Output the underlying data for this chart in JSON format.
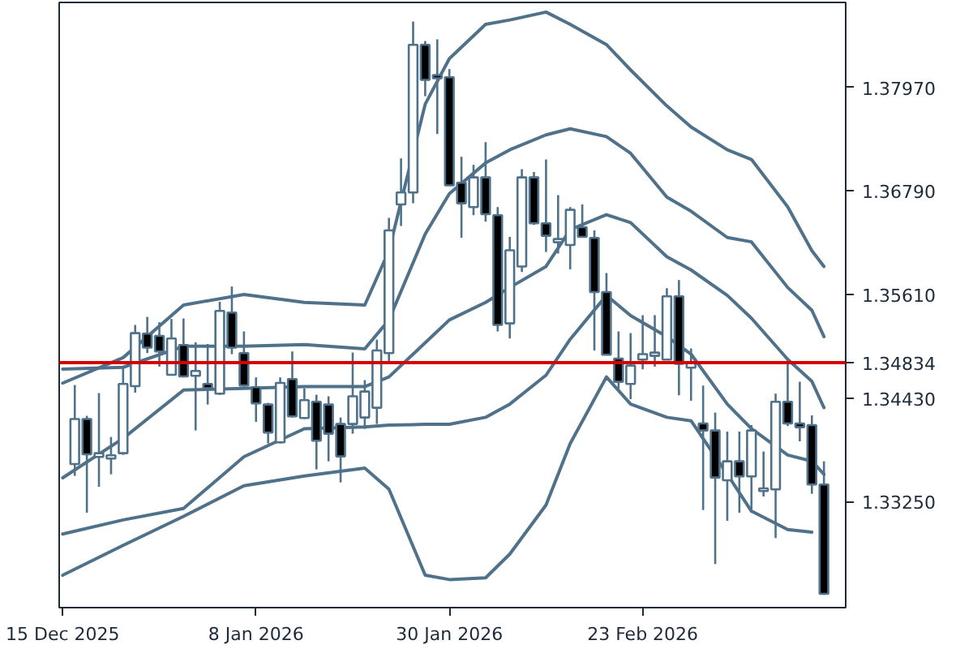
{
  "chart_data": {
    "type": "candlestick",
    "categories": [
      "15 Dec 2025",
      null,
      null,
      null,
      null,
      null,
      null,
      null,
      null,
      null,
      null,
      null,
      null,
      null,
      null,
      null,
      "8 Jan 2026",
      null,
      null,
      null,
      null,
      null,
      null,
      null,
      null,
      null,
      null,
      null,
      null,
      null,
      null,
      null,
      "30 Jan 2026",
      null,
      null,
      null,
      null,
      null,
      null,
      null,
      null,
      null,
      null,
      null,
      null,
      null,
      null,
      null,
      "23 Feb 2026",
      null,
      null,
      null,
      null,
      null,
      null,
      null,
      null,
      null,
      null,
      null,
      null,
      null,
      null,
      null
    ],
    "color": "#4f7189",
    "colors": [
      null,
      "#ffffff",
      "#000000",
      "#ffffff",
      "#ffffff",
      "#ffffff",
      "#ffffff",
      "#000000",
      "#000000",
      "#ffffff",
      "#000000",
      "#ffffff",
      "#000000",
      "#ffffff",
      "#000000",
      "#000000",
      "#000000",
      "#000000",
      "#ffffff",
      "#000000",
      "#ffffff",
      "#000000",
      "#000000",
      "#000000",
      "#ffffff",
      "#ffffff",
      "#ffffff",
      "#ffffff",
      "#ffffff",
      "#ffffff",
      "#000000",
      "#000000",
      "#000000",
      "#000000",
      "#ffffff",
      "#000000",
      "#000000",
      "#ffffff",
      "#ffffff",
      "#000000",
      "#000000",
      "#ffffff",
      "#ffffff",
      "#000000",
      "#000000",
      "#000000",
      "#000000",
      "#ffffff",
      "#ffffff",
      "#ffffff",
      "#ffffff",
      "#000000",
      "#ffffff",
      "#000000",
      "#000000",
      "#ffffff",
      "#000000",
      "#ffffff",
      "#ffffff",
      "#ffffff",
      "#000000",
      "#000000",
      "#000000",
      "#000000"
    ],
    "ohlc": [
      null,
      [
        1.33677,
        1.34578,
        1.33542,
        1.3419
      ],
      [
        1.3419,
        1.34227,
        1.33122,
        1.33788
      ],
      [
        1.33758,
        1.34486,
        1.33418,
        1.33801
      ],
      [
        1.3374,
        1.33986,
        1.3356,
        1.33777
      ],
      [
        1.33801,
        1.34782,
        1.33782,
        1.34591
      ],
      [
        1.34565,
        1.35263,
        1.34491,
        1.3517
      ],
      [
        1.35164,
        1.35355,
        1.34942,
        1.35004
      ],
      [
        1.35139,
        1.35294,
        1.34787,
        1.34961
      ],
      [
        1.34695,
        1.35331,
        1.34689,
        1.35109
      ],
      [
        1.35035,
        1.35337,
        1.34665,
        1.34676
      ],
      [
        1.34683,
        1.35065,
        1.3406,
        1.34739
      ],
      [
        1.34591,
        1.35046,
        1.34356,
        1.34541
      ],
      [
        1.3448,
        1.35527,
        1.34467,
        1.35423
      ],
      [
        1.35405,
        1.35701,
        1.3493,
        1.35004
      ],
      [
        1.34942,
        1.35189,
        1.3456,
        1.34572
      ],
      [
        1.34554,
        1.34665,
        1.34158,
        1.34369
      ],
      [
        1.34356,
        1.34375,
        1.33912,
        1.34036
      ],
      [
        1.33925,
        1.34665,
        1.33912,
        1.34602
      ],
      [
        1.34646,
        1.34961,
        1.34208,
        1.34221
      ],
      [
        1.34202,
        1.34541,
        1.3419,
        1.34406
      ],
      [
        1.34387,
        1.34467,
        1.33616,
        1.33943
      ],
      [
        1.34356,
        1.34449,
        1.33708,
        1.34023
      ],
      [
        1.34134,
        1.34208,
        1.33468,
        1.33764
      ],
      [
        1.34134,
        1.34948,
        1.34023,
        1.34449
      ],
      [
        1.34208,
        1.34634,
        1.34078,
        1.34504
      ],
      [
        1.34319,
        1.35096,
        1.34134,
        1.34972
      ],
      [
        1.34942,
        1.36484,
        1.3485,
        1.36341
      ],
      [
        1.36637,
        1.37162,
        1.36391,
        1.36774
      ],
      [
        1.36774,
        1.38722,
        1.3665,
        1.38457
      ],
      [
        1.38457,
        1.385,
        1.37871,
        1.38056
      ],
      [
        1.38112,
        1.38519,
        1.3744,
        1.38075
      ],
      [
        1.38087,
        1.3818,
        1.36854,
        1.36854
      ],
      [
        1.36885,
        1.37181,
        1.36256,
        1.3665
      ],
      [
        1.36607,
        1.37088,
        1.36515,
        1.36946
      ],
      [
        1.36946,
        1.37347,
        1.36441,
        1.36526
      ],
      [
        1.36515,
        1.36607,
        1.35189,
        1.35263
      ],
      [
        1.35281,
        1.36267,
        1.35109,
        1.36114
      ],
      [
        1.35929,
        1.37039,
        1.35867,
        1.36946
      ],
      [
        1.36946,
        1.37007,
        1.36404,
        1.36422
      ],
      [
        1.36422,
        1.3715,
        1.36095,
        1.3628
      ],
      [
        1.36206,
        1.36743,
        1.36077,
        1.36243
      ],
      [
        1.36175,
        1.36607,
        1.35897,
        1.36576
      ],
      [
        1.36378,
        1.36637,
        1.36262,
        1.36267
      ],
      [
        1.36256,
        1.36341,
        1.34972,
        1.35638
      ],
      [
        1.35638,
        1.35855,
        1.34924,
        1.34924
      ],
      [
        1.3488,
        1.35189,
        1.3451,
        1.34615
      ],
      [
        1.34591,
        1.3517,
        1.34417,
        1.348
      ],
      [
        1.34868,
        1.35374,
        1.34757,
        1.3493
      ],
      [
        1.34911,
        1.35374,
        1.34787,
        1.34948
      ],
      [
        1.34868,
        1.35682,
        1.34868,
        1.3559
      ],
      [
        1.3559,
        1.35775,
        1.34461,
        1.34819
      ],
      [
        1.34776,
        1.34996,
        1.34399,
        1.34831
      ],
      [
        1.3414,
        1.34572,
        1.33153,
        1.3406
      ],
      [
        1.3406,
        1.34264,
        1.32537,
        1.33523
      ],
      [
        1.33492,
        1.34047,
        1.3303,
        1.33708
      ],
      [
        1.33708,
        1.34047,
        1.33122,
        1.33536
      ],
      [
        1.33536,
        1.34121,
        1.33122,
        1.3406
      ],
      [
        1.3337,
        1.3382,
        1.33307,
        1.334
      ],
      [
        1.33388,
        1.3448,
        1.32833,
        1.34387
      ],
      [
        1.34387,
        1.34861,
        1.3411,
        1.3414
      ],
      [
        1.3414,
        1.34615,
        1.33936,
        1.34097
      ],
      [
        1.34121,
        1.34232,
        1.33338,
        1.33444
      ],
      [
        1.33444,
        1.33708,
        1.32186,
        1.32197
      ]
    ],
    "series": [
      {
        "type": "line",
        "color": "#4f7189",
        "values": [
          1.346,
          null,
          null,
          null,
          null,
          1.3489,
          null,
          null,
          null,
          null,
          1.3549,
          null,
          null,
          null,
          null,
          1.3561,
          null,
          null,
          null,
          null,
          1.3552,
          null,
          null,
          null,
          null,
          1.3549,
          null,
          1.3611,
          null,
          null,
          1.3778,
          null,
          1.383,
          null,
          null,
          1.3869,
          null,
          1.3874,
          null,
          null,
          1.3883,
          null,
          1.3869,
          null,
          null,
          1.3846,
          null,
          1.3817,
          null,
          null,
          1.3776,
          null,
          1.3752,
          null,
          null,
          1.3726,
          null,
          1.3715,
          null,
          null,
          1.3661,
          null,
          1.3611,
          1.3593
        ]
      },
      {
        "type": "line",
        "color": "#4f7189",
        "values": [
          1.3476,
          null,
          null,
          null,
          null,
          1.3478,
          null,
          null,
          null,
          null,
          1.3502,
          null,
          null,
          null,
          null,
          1.3502,
          null,
          null,
          null,
          null,
          1.3504,
          null,
          null,
          null,
          null,
          1.3499,
          null,
          1.3532,
          null,
          null,
          1.363,
          null,
          1.3676,
          null,
          null,
          1.3711,
          null,
          1.3726,
          null,
          null,
          1.3743,
          null,
          1.375,
          null,
          null,
          1.3741,
          null,
          1.3722,
          null,
          null,
          1.3672,
          null,
          1.3656,
          null,
          null,
          1.3626,
          null,
          1.3621,
          null,
          null,
          1.3569,
          null,
          1.3543,
          1.3513
        ]
      },
      {
        "type": "line",
        "color": "#4f7189",
        "values": [
          1.3352,
          null,
          null,
          null,
          null,
          1.3397,
          null,
          null,
          null,
          null,
          1.3452,
          null,
          null,
          null,
          null,
          1.3454,
          null,
          null,
          null,
          null,
          1.3456,
          null,
          null,
          null,
          null,
          1.3456,
          null,
          1.3467,
          null,
          null,
          1.3506,
          null,
          1.3532,
          null,
          null,
          1.3552,
          null,
          1.3569,
          null,
          null,
          1.3593,
          null,
          1.3635,
          null,
          null,
          1.3652,
          null,
          1.3643,
          null,
          null,
          1.3604,
          null,
          1.3589,
          null,
          null,
          1.356,
          null,
          1.3534,
          null,
          null,
          1.3487,
          null,
          1.3462,
          1.3432
        ]
      },
      {
        "type": "line",
        "color": "#4f7189",
        "values": [
          1.3288,
          null,
          null,
          null,
          null,
          1.3304,
          null,
          null,
          null,
          null,
          1.3317,
          null,
          null,
          null,
          null,
          1.3376,
          null,
          null,
          null,
          null,
          1.3408,
          null,
          null,
          null,
          null,
          1.341,
          null,
          1.3412,
          null,
          null,
          1.3413,
          null,
          1.3413,
          null,
          null,
          1.3421,
          null,
          1.3436,
          null,
          null,
          1.3469,
          null,
          1.351,
          null,
          null,
          1.356,
          null,
          1.3537,
          null,
          null,
          1.3513,
          null,
          1.3493,
          null,
          null,
          1.3436,
          null,
          1.3408,
          null,
          null,
          1.3378,
          null,
          1.3371,
          1.3356
        ]
      },
      {
        "type": "line",
        "color": "#4f7189",
        "values": [
          1.3241,
          null,
          null,
          null,
          null,
          1.3275,
          null,
          null,
          null,
          null,
          1.3308,
          null,
          null,
          null,
          null,
          1.3343,
          null,
          null,
          null,
          null,
          1.3354,
          null,
          null,
          null,
          null,
          1.3363,
          null,
          1.3339,
          null,
          null,
          1.3241,
          null,
          1.3236,
          null,
          null,
          1.3238,
          null,
          1.3265,
          null,
          null,
          1.3321,
          null,
          1.3391,
          null,
          null,
          1.3467,
          null,
          1.3436,
          null,
          null,
          1.3421,
          null,
          1.3417,
          null,
          null,
          1.3356,
          null,
          1.3314,
          null,
          null,
          1.3293,
          null,
          1.329,
          null
        ]
      }
    ],
    "ylim": [
      1.3204,
      1.3894
    ],
    "yticks": [
      {
        "value": 1.3325,
        "label": "1.33250"
      },
      {
        "value": 1.3443,
        "label": "1.34430"
      },
      {
        "value": 1.3561,
        "label": "1.35610"
      },
      {
        "value": 1.3679,
        "label": "1.36790"
      },
      {
        "value": 1.3797,
        "label": "1.37970"
      }
    ],
    "ref_lines": [
      {
        "axis": "y",
        "value": 1.34834,
        "label": "1.34834",
        "color": "#d40000"
      }
    ]
  }
}
